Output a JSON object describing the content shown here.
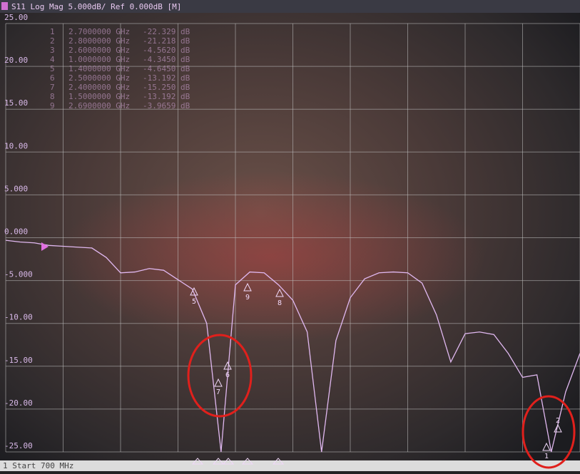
{
  "chart_data": {
    "type": "line",
    "title": "S11 Log Mag 5.000dB/ Ref 0.000dB [M]",
    "footer": "1 Start 700 MHz",
    "ylim": [
      -25,
      25
    ],
    "yticks": [
      {
        "value": 25,
        "label": "25.00"
      },
      {
        "value": 20,
        "label": "20.00"
      },
      {
        "value": 15,
        "label": "15.00"
      },
      {
        "value": 10,
        "label": "10.00"
      },
      {
        "value": 5,
        "label": "5.000"
      },
      {
        "value": 0,
        "label": "0.000"
      },
      {
        "value": -5,
        "label": "-5.000"
      },
      {
        "value": -10,
        "label": "-10.00"
      },
      {
        "value": -15,
        "label": "-15.00"
      },
      {
        "value": -20,
        "label": "-20.00"
      },
      {
        "value": -25,
        "label": "-25.00"
      }
    ],
    "grid": true,
    "color": "#e0b8f0",
    "values": [
      -0.3,
      -0.5,
      -0.6,
      -0.9,
      -1.0,
      -1.1,
      -1.2,
      -2.3,
      -4.1,
      -4.0,
      -3.6,
      -3.8,
      -4.9,
      -6.0,
      -10,
      -25,
      -5.5,
      -4.0,
      -4.1,
      -5.5,
      -7.3,
      -11,
      -25,
      -12,
      -7,
      -4.8,
      -4.1,
      -4.0,
      -4.1,
      -5.3,
      -9,
      -14.5,
      -11.2,
      -11.0,
      -11.3,
      -13.5,
      -16.3,
      -16,
      -25,
      -18,
      -13.5
    ],
    "markers": [
      {
        "id": "1",
        "frequency": "2.7000000 GHz",
        "value": "-22.329 dB"
      },
      {
        "id": "2",
        "frequency": "2.8000000 GHz",
        "value": "-21.218 dB"
      },
      {
        "id": "3",
        "frequency": "2.6000000 GHz",
        "value": "-4.5620 dB"
      },
      {
        "id": "4",
        "frequency": "1.0000000 GHz",
        "value": "-4.3450 dB"
      },
      {
        "id": "5",
        "frequency": "1.4000000 GHz",
        "value": "-4.6450 dB"
      },
      {
        "id": "6",
        "frequency": "2.5000000 GHz",
        "value": "-13.192 dB"
      },
      {
        "id": "7",
        "frequency": "2.4000000 GHz",
        "value": "-15.250 dB"
      },
      {
        "id": "8",
        "frequency": "1.5000000 GHz",
        "value": "-13.192 dB"
      },
      {
        "id": "9",
        "frequency": "2.6900000 GHz",
        "value": "-3.9659 dB"
      }
    ]
  }
}
